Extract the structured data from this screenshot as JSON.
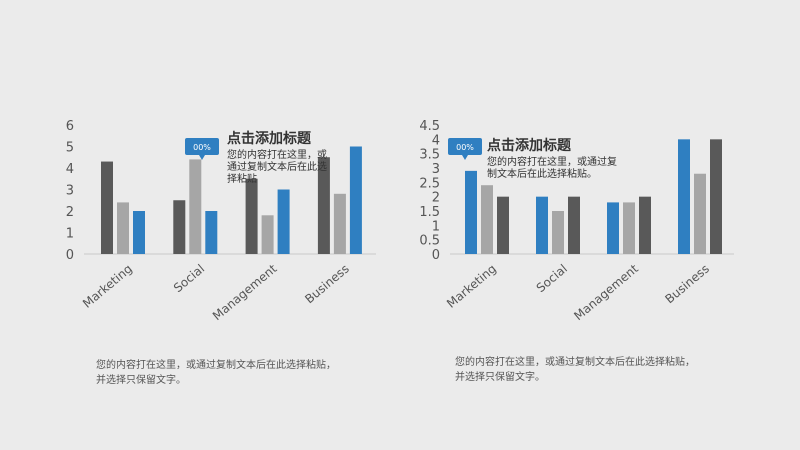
{
  "chart_data": [
    {
      "type": "bar",
      "categories": [
        "Marketing",
        "Social",
        "Management",
        "Business"
      ],
      "series": [
        {
          "values": [
            4.3,
            2.5,
            3.5,
            4.5
          ],
          "color": "#595959"
        },
        {
          "values": [
            2.4,
            4.4,
            1.8,
            2.8
          ],
          "color": "#a6a6a6"
        },
        {
          "values": [
            2.0,
            2.0,
            3.0,
            5.0
          ],
          "color": "#2f7fc1"
        }
      ],
      "yticks": [
        "0",
        "1",
        "2",
        "3",
        "4",
        "5",
        "6"
      ],
      "ylim": [
        0,
        6
      ],
      "annotation": {
        "badge": "00%",
        "title": "点击添加标题",
        "body": [
          "您的内容打在这里，或",
          "通过复制文本后在此选",
          "择粘贴"
        ]
      },
      "caption": [
        "您的内容打在这里，或通过复制文本后在此选择粘贴，",
        "并选择只保留文字。"
      ]
    },
    {
      "type": "bar",
      "categories": [
        "Marketing",
        "Social",
        "Management",
        "Business"
      ],
      "series": [
        {
          "values": [
            2.9,
            2.0,
            1.8,
            4.0
          ],
          "color": "#2f7fc1"
        },
        {
          "values": [
            2.4,
            1.5,
            1.8,
            2.8
          ],
          "color": "#a6a6a6"
        },
        {
          "values": [
            2.0,
            2.0,
            2.0,
            4.0
          ],
          "color": "#595959"
        }
      ],
      "yticks": [
        "0",
        "0.5",
        "1",
        "1.5",
        "2",
        "2.5",
        "3",
        "3.5",
        "4",
        "4.5"
      ],
      "ylim": [
        0,
        4.5
      ],
      "annotation": {
        "badge": "00%",
        "title": "点击添加标题",
        "body": [
          "您的内容打在这里，或通过复",
          "制文本后在此选择粘贴。"
        ]
      },
      "caption": [
        "您的内容打在这里，或通过复制文本后在此选择粘贴，",
        "并选择只保留文字。"
      ]
    }
  ]
}
